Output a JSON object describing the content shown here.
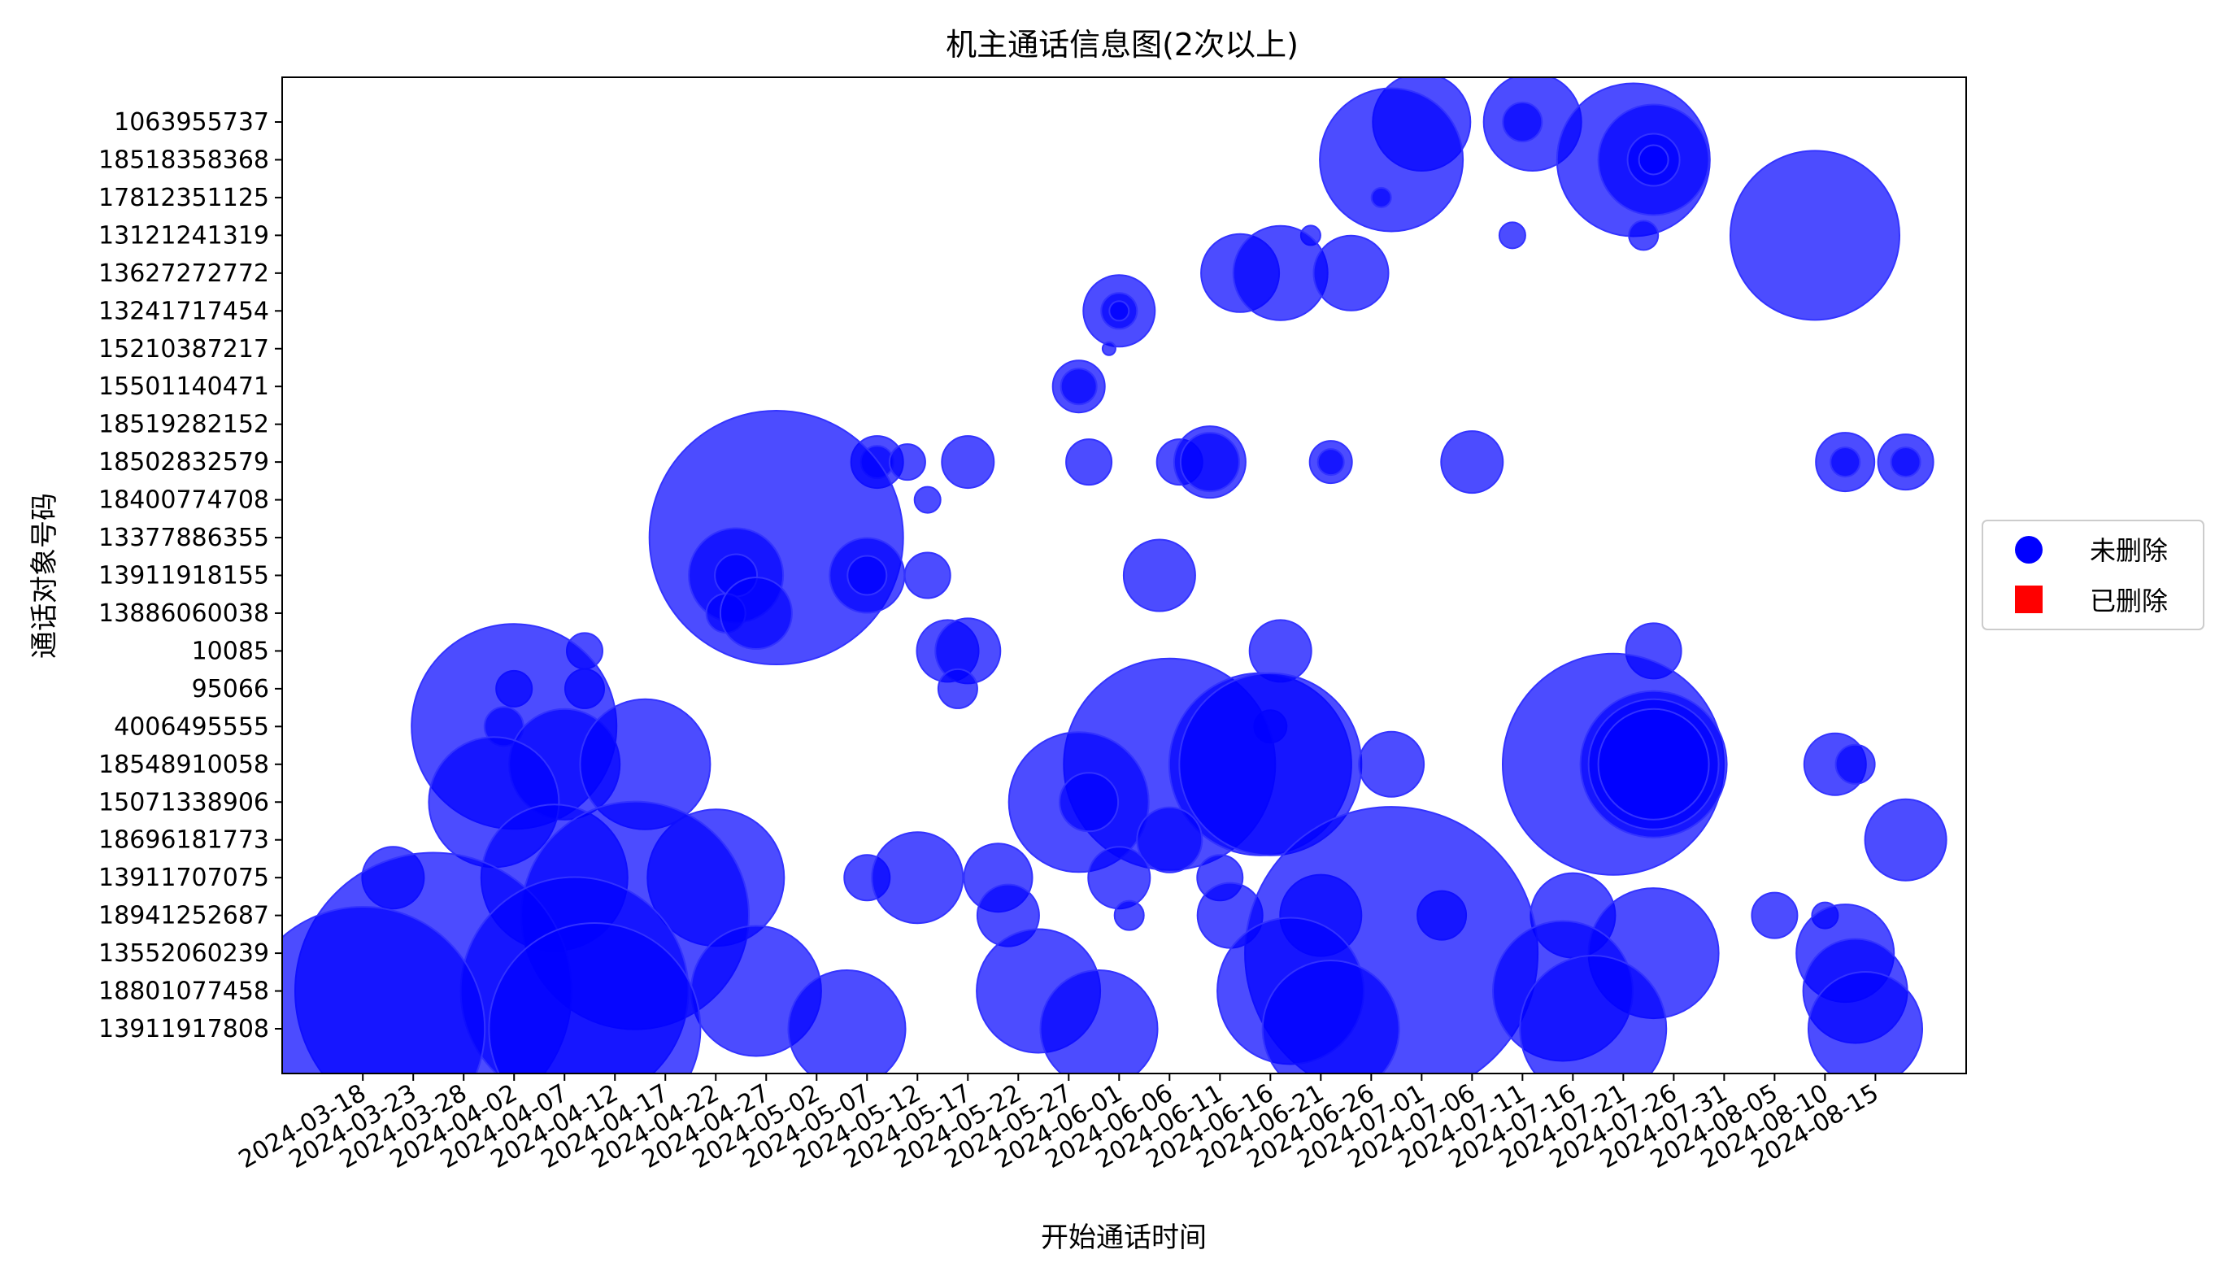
{
  "chart_data": {
    "type": "scatter",
    "title": "机主通话信息图(2次以上)",
    "xlabel": "开始通话时间",
    "ylabel": "通话对象号码",
    "x_tick_labels": [
      "2024-03-18",
      "2024-03-23",
      "2024-03-28",
      "2024-04-02",
      "2024-04-07",
      "2024-04-12",
      "2024-04-17",
      "2024-04-22",
      "2024-04-27",
      "2024-05-02",
      "2024-05-07",
      "2024-05-12",
      "2024-05-17",
      "2024-05-22",
      "2024-05-27",
      "2024-06-01",
      "2024-06-06",
      "2024-06-11",
      "2024-06-16",
      "2024-06-21",
      "2024-06-26",
      "2024-07-01",
      "2024-07-06",
      "2024-07-11",
      "2024-07-16",
      "2024-07-21",
      "2024-07-26",
      "2024-07-31",
      "2024-08-05",
      "2024-08-10",
      "2024-08-15"
    ],
    "xlim": [
      "2024-03-10",
      "2024-08-24"
    ],
    "y_categories": [
      "13911917808",
      "18801077458",
      "13552060239",
      "18941252687",
      "13911707075",
      "18696181773",
      "15071338906",
      "18548910058",
      "4006495555",
      "95066",
      "10085",
      "13886060038",
      "13911918155",
      "13377886355",
      "18400774708",
      "18502832579",
      "18519282152",
      "15501140471",
      "15210387217",
      "13241717454",
      "13627272772",
      "13121241319",
      "17812351125",
      "18518358368",
      "1063955737"
    ],
    "grid": false,
    "legend_position": "right",
    "legend": [
      {
        "label": "未删除",
        "marker": "circle",
        "color": "#0000ff"
      },
      {
        "label": "已删除",
        "marker": "square",
        "color": "#ff0000"
      }
    ],
    "marker_color": "#0000ff",
    "marker_alpha": 0.7,
    "marker_edge_color": "#3333ff",
    "size_unit": "relative marker radius",
    "series": [
      {
        "name": "未删除",
        "points": [
          {
            "x": "2024-07-01",
            "y": "1063955737",
            "s": 3
          },
          {
            "x": "2024-07-12",
            "y": "1063955737",
            "s": 3
          },
          {
            "x": "2024-07-11",
            "y": "1063955737",
            "s": 1.2
          },
          {
            "x": "2024-06-28",
            "y": "18518358368",
            "s": 4.4
          },
          {
            "x": "2024-07-22",
            "y": "18518358368",
            "s": 4.7
          },
          {
            "x": "2024-07-24",
            "y": "18518358368",
            "s": 3.4
          },
          {
            "x": "2024-07-24",
            "y": "18518358368",
            "s": 1.6
          },
          {
            "x": "2024-07-24",
            "y": "18518358368",
            "s": 0.9
          },
          {
            "x": "2024-06-27",
            "y": "17812351125",
            "s": 0.6
          },
          {
            "x": "2024-06-20",
            "y": "13121241319",
            "s": 0.6
          },
          {
            "x": "2024-07-10",
            "y": "13121241319",
            "s": 0.8
          },
          {
            "x": "2024-07-23",
            "y": "13121241319",
            "s": 0.9
          },
          {
            "x": "2024-08-09",
            "y": "13121241319",
            "s": 5.2
          },
          {
            "x": "2024-06-13",
            "y": "13627272772",
            "s": 2.4
          },
          {
            "x": "2024-06-17",
            "y": "13627272772",
            "s": 2.9
          },
          {
            "x": "2024-06-24",
            "y": "13627272772",
            "s": 2.3
          },
          {
            "x": "2024-06-01",
            "y": "13241717454",
            "s": 2.2
          },
          {
            "x": "2024-06-01",
            "y": "13241717454",
            "s": 1.1
          },
          {
            "x": "2024-06-01",
            "y": "13241717454",
            "s": 0.6
          },
          {
            "x": "2024-05-31",
            "y": "15210387217",
            "s": 0.4
          },
          {
            "x": "2024-05-28",
            "y": "15501140471",
            "s": 1.6
          },
          {
            "x": "2024-05-28",
            "y": "15501140471",
            "s": 1.1
          },
          {
            "x": "2024-05-08",
            "y": "18502832579",
            "s": 1.6
          },
          {
            "x": "2024-05-08",
            "y": "18502832579",
            "s": 1.0
          },
          {
            "x": "2024-05-11",
            "y": "18502832579",
            "s": 1.1
          },
          {
            "x": "2024-05-17",
            "y": "18502832579",
            "s": 1.6
          },
          {
            "x": "2024-05-29",
            "y": "18502832579",
            "s": 1.4
          },
          {
            "x": "2024-06-07",
            "y": "18502832579",
            "s": 1.4
          },
          {
            "x": "2024-06-10",
            "y": "18502832579",
            "s": 2.2
          },
          {
            "x": "2024-06-10",
            "y": "18502832579",
            "s": 1.8
          },
          {
            "x": "2024-06-22",
            "y": "18502832579",
            "s": 1.3
          },
          {
            "x": "2024-06-22",
            "y": "18502832579",
            "s": 0.8
          },
          {
            "x": "2024-07-06",
            "y": "18502832579",
            "s": 1.9
          },
          {
            "x": "2024-08-12",
            "y": "18502832579",
            "s": 1.8
          },
          {
            "x": "2024-08-12",
            "y": "18502832579",
            "s": 0.9
          },
          {
            "x": "2024-08-18",
            "y": "18502832579",
            "s": 1.7
          },
          {
            "x": "2024-08-18",
            "y": "18502832579",
            "s": 0.9
          },
          {
            "x": "2024-05-13",
            "y": "18400774708",
            "s": 0.8
          },
          {
            "x": "2024-04-28",
            "y": "13377886355",
            "s": 7.8
          },
          {
            "x": "2024-04-24",
            "y": "13911918155",
            "s": 2.9
          },
          {
            "x": "2024-04-24",
            "y": "13911918155",
            "s": 1.3
          },
          {
            "x": "2024-05-07",
            "y": "13911918155",
            "s": 2.3
          },
          {
            "x": "2024-05-07",
            "y": "13911918155",
            "s": 1.2
          },
          {
            "x": "2024-05-13",
            "y": "13911918155",
            "s": 1.4
          },
          {
            "x": "2024-06-05",
            "y": "13911918155",
            "s": 2.2
          },
          {
            "x": "2024-04-23",
            "y": "13886060038",
            "s": 1.2
          },
          {
            "x": "2024-04-26",
            "y": "13886060038",
            "s": 2.2
          },
          {
            "x": "2024-05-15",
            "y": "10085",
            "s": 1.9
          },
          {
            "x": "2024-05-17",
            "y": "10085",
            "s": 2.0
          },
          {
            "x": "2024-06-17",
            "y": "10085",
            "s": 1.9
          },
          {
            "x": "2024-07-24",
            "y": "10085",
            "s": 1.7
          },
          {
            "x": "2024-04-09",
            "y": "10085",
            "s": 1.1
          },
          {
            "x": "2024-04-09",
            "y": "95066",
            "s": 1.2
          },
          {
            "x": "2024-04-02",
            "y": "95066",
            "s": 1.1
          },
          {
            "x": "2024-05-16",
            "y": "95066",
            "s": 1.2
          },
          {
            "x": "2024-04-02",
            "y": "4006495555",
            "s": 6.3
          },
          {
            "x": "2024-04-01",
            "y": "4006495555",
            "s": 1.2
          },
          {
            "x": "2024-06-16",
            "y": "4006495555",
            "s": 1.0
          },
          {
            "x": "2024-04-07",
            "y": "18548910058",
            "s": 3.4
          },
          {
            "x": "2024-04-15",
            "y": "18548910058",
            "s": 4.0
          },
          {
            "x": "2024-06-06",
            "y": "18548910058",
            "s": 6.5
          },
          {
            "x": "2024-06-15",
            "y": "18548910058",
            "s": 5.6
          },
          {
            "x": "2024-06-16",
            "y": "18548910058",
            "s": 5.6
          },
          {
            "x": "2024-06-28",
            "y": "18548910058",
            "s": 2.0
          },
          {
            "x": "2024-07-20",
            "y": "18548910058",
            "s": 6.8
          },
          {
            "x": "2024-07-24",
            "y": "18548910058",
            "s": 4.5
          },
          {
            "x": "2024-07-24",
            "y": "18548910058",
            "s": 4.0
          },
          {
            "x": "2024-07-24",
            "y": "18548910058",
            "s": 3.4
          },
          {
            "x": "2024-08-11",
            "y": "18548910058",
            "s": 1.9
          },
          {
            "x": "2024-08-13",
            "y": "18548910058",
            "s": 1.2
          },
          {
            "x": "2024-03-31",
            "y": "15071338906",
            "s": 4.0
          },
          {
            "x": "2024-05-28",
            "y": "15071338906",
            "s": 4.3
          },
          {
            "x": "2024-05-29",
            "y": "15071338906",
            "s": 1.8
          },
          {
            "x": "2024-06-06",
            "y": "18696181773",
            "s": 2.0
          },
          {
            "x": "2024-08-18",
            "y": "18696181773",
            "s": 2.5
          },
          {
            "x": "2024-03-21",
            "y": "13911707075",
            "s": 1.9
          },
          {
            "x": "2024-04-06",
            "y": "13911707075",
            "s": 4.5
          },
          {
            "x": "2024-04-22",
            "y": "13911707075",
            "s": 4.2
          },
          {
            "x": "2024-05-07",
            "y": "13911707075",
            "s": 1.4
          },
          {
            "x": "2024-05-12",
            "y": "13911707075",
            "s": 2.8
          },
          {
            "x": "2024-05-20",
            "y": "13911707075",
            "s": 2.1
          },
          {
            "x": "2024-06-01",
            "y": "13911707075",
            "s": 1.9
          },
          {
            "x": "2024-06-11",
            "y": "13911707075",
            "s": 1.4
          },
          {
            "x": "2024-04-14",
            "y": "18941252687",
            "s": 7.0
          },
          {
            "x": "2024-05-21",
            "y": "18941252687",
            "s": 1.9
          },
          {
            "x": "2024-06-02",
            "y": "18941252687",
            "s": 0.9
          },
          {
            "x": "2024-06-12",
            "y": "18941252687",
            "s": 2.0
          },
          {
            "x": "2024-06-21",
            "y": "18941252687",
            "s": 2.5
          },
          {
            "x": "2024-07-03",
            "y": "18941252687",
            "s": 1.5
          },
          {
            "x": "2024-07-16",
            "y": "18941252687",
            "s": 2.6
          },
          {
            "x": "2024-08-05",
            "y": "18941252687",
            "s": 1.4
          },
          {
            "x": "2024-08-10",
            "y": "18941252687",
            "s": 0.8
          },
          {
            "x": "2024-06-28",
            "y": "13552060239",
            "s": 9.0
          },
          {
            "x": "2024-07-24",
            "y": "13552060239",
            "s": 4.0
          },
          {
            "x": "2024-08-12",
            "y": "13552060239",
            "s": 3.0
          },
          {
            "x": "2024-03-25",
            "y": "18801077458",
            "s": 8.5
          },
          {
            "x": "2024-04-08",
            "y": "18801077458",
            "s": 7.0
          },
          {
            "x": "2024-04-26",
            "y": "18801077458",
            "s": 4.0
          },
          {
            "x": "2024-05-24",
            "y": "18801077458",
            "s": 3.8
          },
          {
            "x": "2024-06-18",
            "y": "18801077458",
            "s": 4.5
          },
          {
            "x": "2024-07-15",
            "y": "18801077458",
            "s": 4.3
          },
          {
            "x": "2024-08-13",
            "y": "18801077458",
            "s": 3.2
          },
          {
            "x": "2024-03-18",
            "y": "13911917808",
            "s": 7.5
          },
          {
            "x": "2024-04-10",
            "y": "13911917808",
            "s": 6.5
          },
          {
            "x": "2024-05-05",
            "y": "13911917808",
            "s": 3.6
          },
          {
            "x": "2024-05-30",
            "y": "13911917808",
            "s": 3.6
          },
          {
            "x": "2024-06-22",
            "y": "13911917808",
            "s": 4.2
          },
          {
            "x": "2024-07-18",
            "y": "13911917808",
            "s": 4.5
          },
          {
            "x": "2024-08-14",
            "y": "13911917808",
            "s": 3.5
          }
        ]
      },
      {
        "name": "已删除",
        "points": []
      }
    ]
  }
}
